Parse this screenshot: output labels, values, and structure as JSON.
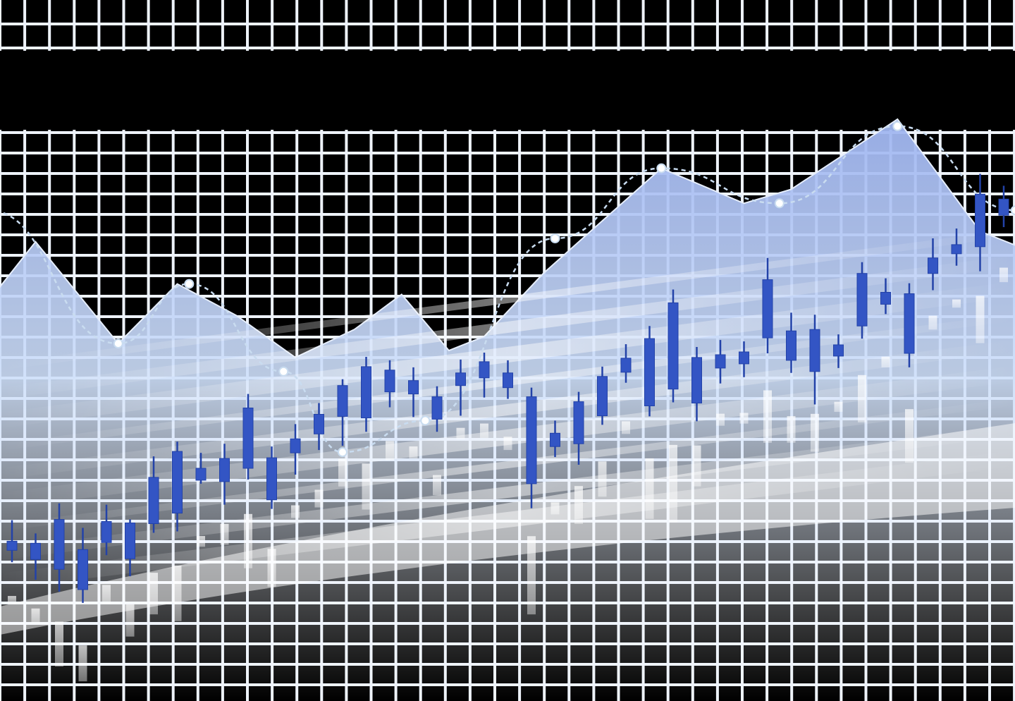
{
  "chart_data": {
    "type": "candlestick",
    "title": "",
    "xlabel": "",
    "ylabel": "",
    "ylim": [
      0,
      100
    ],
    "grid": true,
    "legend": "none",
    "colors": {
      "background": "#000000",
      "grid": "#eef3fb",
      "candle": "#3355c4",
      "candle_dark": "#2342a8",
      "reflection": "#ffffff",
      "area_top": "#a8bdf2",
      "area_bottom": "#ffffff",
      "line": "#c9dcf0"
    },
    "candles": [
      {
        "x": 1,
        "open": 21.5,
        "close": 22.8,
        "high": 25.8,
        "low": 19.8
      },
      {
        "x": 2,
        "open": 20.2,
        "close": 22.5,
        "high": 23.9,
        "low": 17.3
      },
      {
        "x": 3,
        "open": 18.8,
        "close": 25.9,
        "high": 28.2,
        "low": 15.6
      },
      {
        "x": 4,
        "open": 21.6,
        "close": 15.9,
        "high": 24.7,
        "low": 14.0
      },
      {
        "x": 5,
        "open": 22.6,
        "close": 25.6,
        "high": 28.0,
        "low": 20.8
      },
      {
        "x": 6,
        "open": 20.3,
        "close": 25.4,
        "high": 25.9,
        "low": 17.8
      },
      {
        "x": 7,
        "open": 25.3,
        "close": 31.9,
        "high": 34.9,
        "low": 24.0
      },
      {
        "x": 8,
        "open": 26.8,
        "close": 35.6,
        "high": 37.0,
        "low": 24.2
      },
      {
        "x": 9,
        "open": 31.5,
        "close": 33.2,
        "high": 35.4,
        "low": 31.0
      },
      {
        "x": 10,
        "open": 31.3,
        "close": 34.6,
        "high": 36.7,
        "low": 28.0
      },
      {
        "x": 11,
        "open": 33.2,
        "close": 41.8,
        "high": 43.8,
        "low": 31.6
      },
      {
        "x": 12,
        "open": 34.7,
        "close": 28.7,
        "high": 36.3,
        "low": 27.4
      },
      {
        "x": 13,
        "open": 35.4,
        "close": 37.4,
        "high": 39.5,
        "low": 32.3
      },
      {
        "x": 14,
        "open": 38.1,
        "close": 40.9,
        "high": 42.5,
        "low": 35.8
      },
      {
        "x": 15,
        "open": 40.6,
        "close": 45.0,
        "high": 45.9,
        "low": 36.4
      },
      {
        "x": 16,
        "open": 47.7,
        "close": 40.4,
        "high": 49.1,
        "low": 38.4
      },
      {
        "x": 17,
        "open": 47.2,
        "close": 44.1,
        "high": 48.6,
        "low": 41.9
      },
      {
        "x": 18,
        "open": 43.8,
        "close": 45.7,
        "high": 47.6,
        "low": 40.5
      },
      {
        "x": 19,
        "open": 43.4,
        "close": 40.2,
        "high": 44.9,
        "low": 38.4
      },
      {
        "x": 20,
        "open": 45.0,
        "close": 46.8,
        "high": 48.7,
        "low": 40.7
      },
      {
        "x": 21,
        "open": 46.1,
        "close": 48.4,
        "high": 49.7,
        "low": 43.3
      },
      {
        "x": 22,
        "open": 44.7,
        "close": 46.8,
        "high": 48.6,
        "low": 43.1
      },
      {
        "x": 23,
        "open": 43.4,
        "close": 31.0,
        "high": 44.7,
        "low": 27.5
      },
      {
        "x": 24,
        "open": 36.3,
        "close": 38.2,
        "high": 40.0,
        "low": 34.8
      },
      {
        "x": 25,
        "open": 36.7,
        "close": 42.7,
        "high": 44.1,
        "low": 33.7
      },
      {
        "x": 26,
        "open": 40.7,
        "close": 46.3,
        "high": 47.7,
        "low": 39.4
      },
      {
        "x": 27,
        "open": 46.9,
        "close": 48.9,
        "high": 50.9,
        "low": 45.4
      },
      {
        "x": 28,
        "open": 42.1,
        "close": 51.7,
        "high": 53.5,
        "low": 40.6
      },
      {
        "x": 29,
        "open": 44.5,
        "close": 56.8,
        "high": 58.7,
        "low": 42.6
      },
      {
        "x": 30,
        "open": 42.5,
        "close": 49.0,
        "high": 50.5,
        "low": 39.9
      },
      {
        "x": 31,
        "open": 47.5,
        "close": 49.4,
        "high": 51.5,
        "low": 45.3
      },
      {
        "x": 32,
        "open": 48.1,
        "close": 49.8,
        "high": 51.3,
        "low": 46.2
      },
      {
        "x": 33,
        "open": 51.8,
        "close": 60.1,
        "high": 63.2,
        "low": 49.6
      },
      {
        "x": 34,
        "open": 52.8,
        "close": 48.6,
        "high": 55.4,
        "low": 46.8
      },
      {
        "x": 35,
        "open": 53.0,
        "close": 47.0,
        "high": 55.1,
        "low": 42.3
      },
      {
        "x": 36,
        "open": 49.2,
        "close": 50.8,
        "high": 52.3,
        "low": 47.5
      },
      {
        "x": 37,
        "open": 53.5,
        "close": 61.0,
        "high": 62.6,
        "low": 51.7
      },
      {
        "x": 38,
        "open": 56.6,
        "close": 58.3,
        "high": 60.3,
        "low": 55.2
      },
      {
        "x": 39,
        "open": 49.6,
        "close": 58.1,
        "high": 59.6,
        "low": 47.6
      },
      {
        "x": 40,
        "open": 61.0,
        "close": 63.2,
        "high": 66.0,
        "low": 58.6
      },
      {
        "x": 41,
        "open": 63.8,
        "close": 65.1,
        "high": 67.4,
        "low": 62.1
      },
      {
        "x": 42,
        "open": 64.8,
        "close": 72.3,
        "high": 75.2,
        "low": 61.3
      },
      {
        "x": 43,
        "open": 71.6,
        "close": 69.3,
        "high": 73.5,
        "low": 67.6
      }
    ],
    "area": [
      {
        "x": 0,
        "y": 57.0
      },
      {
        "x": 2,
        "y": 65.5
      },
      {
        "x": 5.5,
        "y": 51.0
      },
      {
        "x": 8,
        "y": 59.5
      },
      {
        "x": 10.5,
        "y": 55.0
      },
      {
        "x": 13,
        "y": 49.0
      },
      {
        "x": 15.5,
        "y": 53.0
      },
      {
        "x": 17.5,
        "y": 58.0
      },
      {
        "x": 19.5,
        "y": 50.0
      },
      {
        "x": 21,
        "y": 52.0
      },
      {
        "x": 23.5,
        "y": 61.0
      },
      {
        "x": 28.5,
        "y": 76.0
      },
      {
        "x": 32,
        "y": 71.0
      },
      {
        "x": 34,
        "y": 73.0
      },
      {
        "x": 38.5,
        "y": 83.0
      },
      {
        "x": 42,
        "y": 67.0
      },
      {
        "x": 43.5,
        "y": 65.0
      }
    ],
    "trend_line": [
      {
        "x": 0,
        "y": 70.0
      },
      {
        "x": 5.5,
        "y": 51.0
      },
      {
        "x": 8.5,
        "y": 59.5
      },
      {
        "x": 12.5,
        "y": 47.0
      },
      {
        "x": 15,
        "y": 35.5
      },
      {
        "x": 18.5,
        "y": 40.0
      },
      {
        "x": 24,
        "y": 66.0
      },
      {
        "x": 28.5,
        "y": 76.0
      },
      {
        "x": 33.5,
        "y": 71.0
      },
      {
        "x": 38.5,
        "y": 82.0
      },
      {
        "x": 43.5,
        "y": 70.0
      }
    ]
  }
}
